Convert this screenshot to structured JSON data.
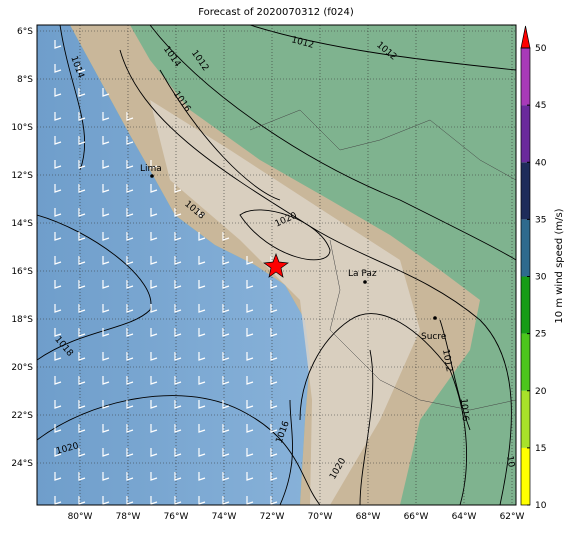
{
  "title": "Forecast of 2020070312 (f024)",
  "map": {
    "lon_ticks": [
      {
        "value": -80,
        "label": "80°W"
      },
      {
        "value": -78,
        "label": "78°W"
      },
      {
        "value": -76,
        "label": "76°W"
      },
      {
        "value": -74,
        "label": "74°W"
      },
      {
        "value": -72,
        "label": "72°W"
      },
      {
        "value": -70,
        "label": "70°W"
      },
      {
        "value": -68,
        "label": "68°W"
      },
      {
        "value": -66,
        "label": "66°W"
      },
      {
        "value": -64,
        "label": "64°W"
      },
      {
        "value": -62,
        "label": "62°W"
      }
    ],
    "lat_ticks": [
      {
        "value": -6,
        "label": "6°S"
      },
      {
        "value": -8,
        "label": "8°S"
      },
      {
        "value": -10,
        "label": "10°S"
      },
      {
        "value": -12,
        "label": "12°S"
      },
      {
        "value": -14,
        "label": "14°S"
      },
      {
        "value": -16,
        "label": "16°S"
      },
      {
        "value": -18,
        "label": "18°S"
      },
      {
        "value": -20,
        "label": "20°S"
      },
      {
        "value": -22,
        "label": "22°S"
      },
      {
        "value": -24,
        "label": "24°S"
      }
    ],
    "cities": [
      "Lima",
      "La Paz",
      "Sucre"
    ],
    "contour_labels": [
      "1014",
      "1014",
      "1012",
      "1012",
      "1012",
      "1016",
      "1018",
      "1020",
      "1018",
      "1020",
      "1016",
      "1020",
      "1012",
      "1016",
      "10"
    ]
  },
  "colorbar": {
    "label": "10 m wind speed (m/s)",
    "range": [
      10,
      50
    ],
    "ticks": [
      10,
      15,
      20,
      25,
      30,
      35,
      40,
      45,
      50
    ],
    "colors": [
      "#ffff00",
      "#a8e22a",
      "#4cc61c",
      "#169c16",
      "#2e6a8e",
      "#1e2c5a",
      "#6a2a9c",
      "#a83ab8"
    ],
    "extend_color": "#ff0000"
  }
}
